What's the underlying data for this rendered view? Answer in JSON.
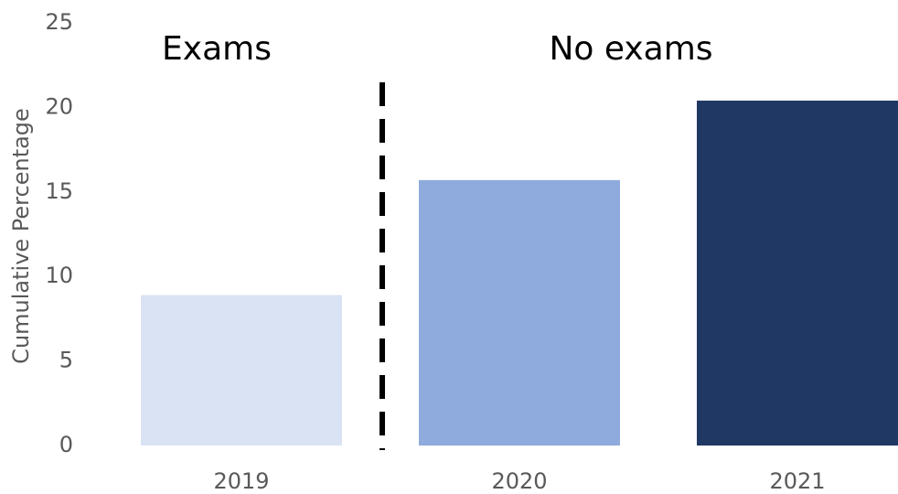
{
  "chart_data": {
    "type": "bar",
    "y_label": "Cumulative Percentage",
    "annotations": [
      "Exams",
      "No exams"
    ],
    "categories": [
      "2019",
      "2020",
      "2021"
    ],
    "values": [
      8.9,
      15.7,
      20.4
    ],
    "colors": [
      "#dae3f3",
      "#8faadc",
      "#203864"
    ],
    "ylim": [
      0,
      25
    ],
    "yticks": [
      0,
      5,
      10,
      15,
      20,
      25
    ],
    "grid": false
  }
}
